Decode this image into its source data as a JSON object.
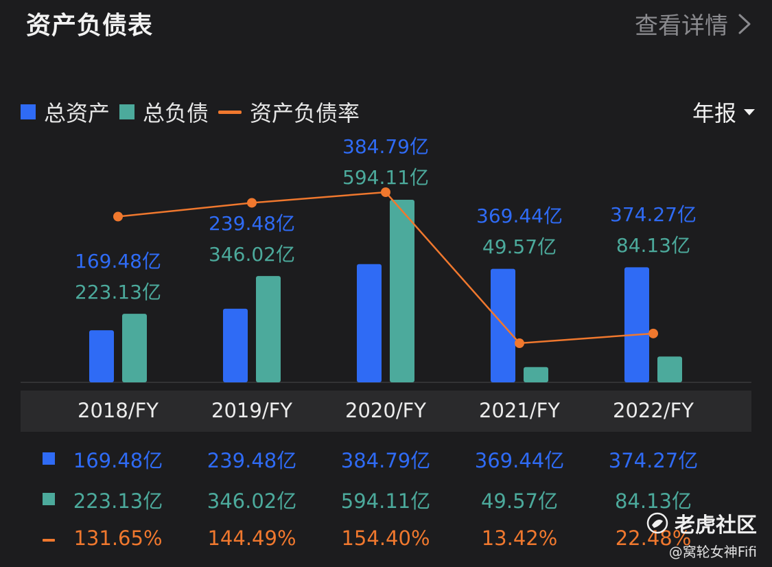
{
  "header": {
    "title": "资产负债表",
    "detail_label": "查看详情"
  },
  "legend": [
    {
      "label": "总资产",
      "color": "#2f6bf5",
      "kind": "box"
    },
    {
      "label": "总负债",
      "color": "#4caa9c",
      "kind": "box"
    },
    {
      "label": "资产负债率",
      "color": "#f0782e",
      "kind": "line"
    }
  ],
  "period_selector": {
    "label": "年报"
  },
  "chart_data": {
    "type": "bar",
    "categories": [
      "2018/FY",
      "2019/FY",
      "2020/FY",
      "2021/FY",
      "2022/FY"
    ],
    "series": [
      {
        "name": "总资产",
        "type": "bar",
        "color": "#2f6bf5",
        "values": [
          169.48,
          239.48,
          384.79,
          369.44,
          374.27
        ],
        "labels": [
          "169.48亿",
          "239.48亿",
          "384.79亿",
          "369.44亿",
          "374.27亿"
        ]
      },
      {
        "name": "总负债",
        "type": "bar",
        "color": "#4caa9c",
        "values": [
          223.13,
          346.02,
          594.11,
          49.57,
          84.13
        ],
        "labels": [
          "223.13亿",
          "346.02亿",
          "594.11亿",
          "49.57亿",
          "84.13亿"
        ]
      },
      {
        "name": "资产负债率",
        "type": "line",
        "color": "#f0782e",
        "values": [
          131.65,
          144.49,
          154.4,
          13.42,
          22.48
        ],
        "labels": [
          "131.65%",
          "144.49%",
          "154.40%",
          "13.42%",
          "22.48%"
        ]
      }
    ]
  },
  "watermark": {
    "brand": "老虎社区",
    "handle": "@窝轮女神Fifi"
  }
}
